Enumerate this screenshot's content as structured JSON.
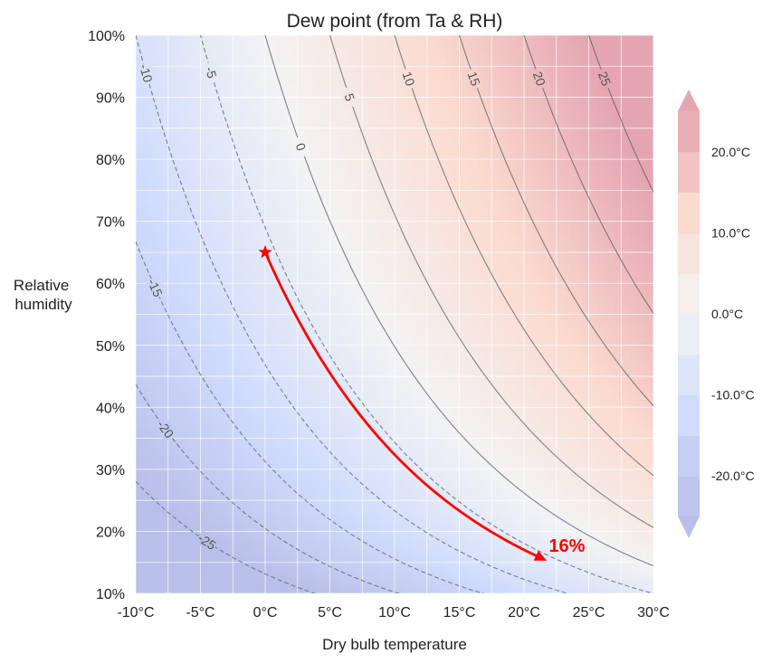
{
  "chart_data": {
    "type": "contour",
    "title": "Dew point (from Ta & RH)",
    "xlabel": "Dry bulb temperature",
    "ylabel_lines": [
      "Relative",
      "humidity"
    ],
    "xlim": [
      -10,
      30
    ],
    "ylim": [
      10,
      100
    ],
    "x_ticks": [
      -10,
      -5,
      0,
      5,
      10,
      15,
      20,
      25,
      30
    ],
    "x_tick_labels": [
      "-10°C",
      "-5°C",
      "0°C",
      "5°C",
      "10°C",
      "15°C",
      "20°C",
      "25°C",
      "30°C"
    ],
    "y_ticks": [
      10,
      20,
      30,
      40,
      50,
      60,
      70,
      80,
      90,
      100
    ],
    "y_tick_labels": [
      "10%",
      "20%",
      "30%",
      "40%",
      "50%",
      "60%",
      "70%",
      "80%",
      "90%",
      "100%"
    ],
    "grid": true,
    "contour_levels": [
      -25,
      -20,
      -15,
      -10,
      -5,
      0,
      5,
      10,
      15,
      20,
      25
    ],
    "contour_labels": [
      "-25",
      "-20",
      "-15",
      "-10",
      "-5",
      "0",
      "5",
      "10",
      "15",
      "20",
      "25"
    ],
    "colormap": "coolwarm",
    "colorbar": {
      "range": [
        -25,
        25
      ],
      "extend": "both",
      "ticks": [
        20,
        10,
        0,
        -10,
        -20
      ],
      "tick_labels": [
        "20.0°C",
        "10.0°C",
        "0.0°C",
        "-10.0°C",
        "-20.0°C"
      ]
    },
    "path": {
      "start": {
        "t": 0,
        "rh": 65
      },
      "end": {
        "t": 21.5,
        "rh": 16
      },
      "label": "16%",
      "color": "#ff0000"
    }
  }
}
